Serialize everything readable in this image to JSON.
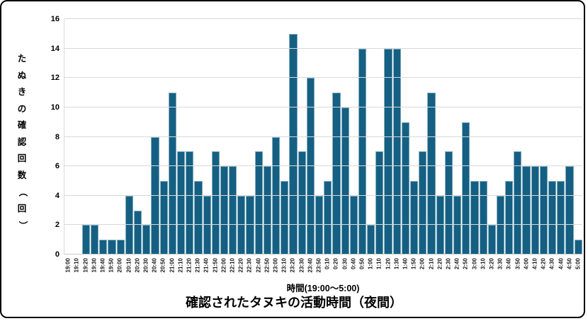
{
  "chart_data": {
    "type": "bar",
    "title": "確認されたタヌキの活動時間（夜間）",
    "xlabel": "時間(19:00～5:00)",
    "ylabel": "たぬきの確認回数（回）",
    "categories": [
      "19:00",
      "19:10",
      "19:20",
      "19:30",
      "19:40",
      "19:50",
      "20:00",
      "20:10",
      "20:20",
      "20:30",
      "20:40",
      "20:50",
      "21:00",
      "21:10",
      "21:20",
      "21:30",
      "21:40",
      "21:50",
      "22:00",
      "22:10",
      "22:20",
      "22:30",
      "22:40",
      "22:50",
      "23:00",
      "23:10",
      "23:20",
      "23:30",
      "23:40",
      "23:50",
      "0:10",
      "0:20",
      "0:30",
      "0:40",
      "0:50",
      "1:00",
      "1:10",
      "1:20",
      "1:30",
      "1:40",
      "1:50",
      "2:00",
      "2:10",
      "2:20",
      "2:30",
      "2:40",
      "2:50",
      "3:00",
      "3:10",
      "3:20",
      "3:30",
      "3:40",
      "3:50",
      "4:00",
      "4:10",
      "4:20",
      "4:30",
      "4:40",
      "4:50",
      "5:00"
    ],
    "values": [
      0,
      0,
      2,
      2,
      1,
      1,
      1,
      4,
      3,
      2,
      8,
      5,
      11,
      7,
      7,
      5,
      4,
      7,
      6,
      6,
      4,
      4,
      7,
      6,
      8,
      5,
      15,
      7,
      12,
      4,
      5,
      11,
      10,
      4,
      14,
      2,
      7,
      14,
      14,
      9,
      5,
      7,
      11,
      4,
      7,
      4,
      9,
      5,
      5,
      2,
      4,
      5,
      7,
      6,
      6,
      6,
      5,
      5,
      6,
      1
    ],
    "ylim": [
      0,
      16
    ],
    "yticks": [
      0,
      2,
      4,
      6,
      8,
      10,
      12,
      14,
      16
    ],
    "grid": true,
    "legend": false,
    "colors": {
      "bar_fill": "#156082",
      "bar_edge": "#7EA9BF",
      "gridline": "#D9D9D9",
      "text": "#000000",
      "background": "#FFFFFF",
      "frame_border": "#000000"
    }
  }
}
